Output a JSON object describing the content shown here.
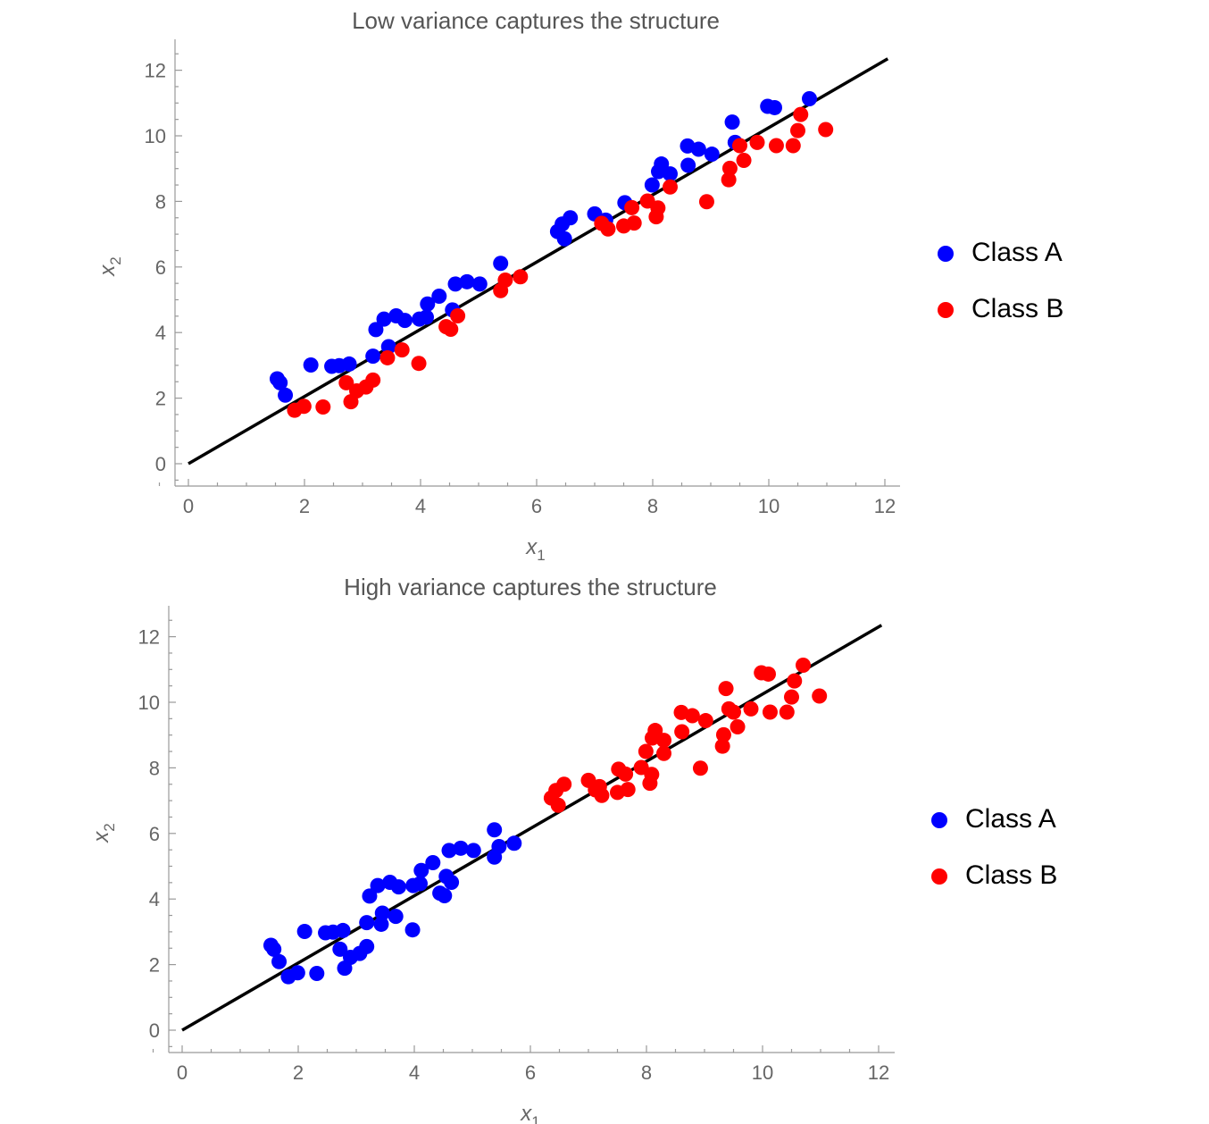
{
  "chart_data": [
    {
      "type": "scatter",
      "title": "Low variance captures the structure",
      "xlabel": "x1",
      "ylabel": "x2",
      "xlim": [
        -0.25,
        12.3
      ],
      "ylim": [
        -0.7,
        13.0
      ],
      "xticks": [
        0,
        2,
        4,
        6,
        8,
        10,
        12
      ],
      "yticks": [
        0,
        2,
        4,
        6,
        8,
        10,
        12
      ],
      "grid": false,
      "legend_position": "right",
      "line": {
        "x": [
          0,
          12.05
        ],
        "y": [
          0,
          12.35
        ],
        "color": "#000000"
      },
      "series": [
        {
          "name": "Class A",
          "color": "#0000ff",
          "points": [
            [
              1.53,
              2.59
            ],
            [
              1.58,
              2.47
            ],
            [
              1.67,
              2.09
            ],
            [
              2.11,
              3.01
            ],
            [
              2.47,
              2.97
            ],
            [
              2.6,
              2.99
            ],
            [
              2.77,
              3.04
            ],
            [
              3.18,
              3.28
            ],
            [
              3.23,
              4.09
            ],
            [
              3.37,
              4.41
            ],
            [
              3.45,
              3.57
            ],
            [
              3.58,
              4.51
            ],
            [
              3.73,
              4.37
            ],
            [
              3.98,
              4.41
            ],
            [
              4.1,
              4.47
            ],
            [
              4.12,
              4.87
            ],
            [
              4.32,
              5.11
            ],
            [
              4.55,
              4.69
            ],
            [
              4.6,
              5.48
            ],
            [
              4.8,
              5.55
            ],
            [
              5.02,
              5.48
            ],
            [
              5.38,
              6.11
            ],
            [
              6.36,
              7.08
            ],
            [
              6.44,
              7.31
            ],
            [
              6.48,
              6.86
            ],
            [
              6.58,
              7.5
            ],
            [
              7.0,
              7.62
            ],
            [
              7.19,
              7.43
            ],
            [
              7.52,
              7.96
            ],
            [
              7.99,
              8.5
            ],
            [
              8.1,
              8.91
            ],
            [
              8.15,
              9.14
            ],
            [
              8.3,
              8.84
            ],
            [
              8.6,
              9.69
            ],
            [
              8.61,
              9.1
            ],
            [
              8.79,
              9.59
            ],
            [
              9.02,
              9.44
            ],
            [
              9.37,
              10.42
            ],
            [
              9.42,
              9.8
            ],
            [
              9.98,
              10.9
            ],
            [
              10.1,
              10.86
            ],
            [
              10.7,
              11.13
            ]
          ]
        },
        {
          "name": "Class B",
          "color": "#ff0000",
          "points": [
            [
              1.83,
              1.63
            ],
            [
              1.99,
              1.75
            ],
            [
              2.32,
              1.73
            ],
            [
              2.72,
              2.47
            ],
            [
              2.8,
              1.89
            ],
            [
              2.9,
              2.22
            ],
            [
              3.06,
              2.34
            ],
            [
              3.18,
              2.55
            ],
            [
              3.43,
              3.23
            ],
            [
              3.68,
              3.47
            ],
            [
              3.97,
              3.06
            ],
            [
              4.44,
              4.18
            ],
            [
              4.52,
              4.1
            ],
            [
              4.64,
              4.51
            ],
            [
              5.38,
              5.28
            ],
            [
              5.46,
              5.6
            ],
            [
              5.72,
              5.7
            ],
            [
              7.12,
              7.33
            ],
            [
              7.23,
              7.16
            ],
            [
              7.5,
              7.25
            ],
            [
              7.64,
              7.81
            ],
            [
              7.68,
              7.34
            ],
            [
              7.91,
              8.01
            ],
            [
              8.06,
              7.53
            ],
            [
              8.09,
              7.8
            ],
            [
              8.3,
              8.44
            ],
            [
              8.93,
              7.99
            ],
            [
              9.31,
              8.66
            ],
            [
              9.33,
              9.01
            ],
            [
              9.5,
              9.7
            ],
            [
              9.57,
              9.25
            ],
            [
              9.8,
              9.8
            ],
            [
              10.13,
              9.7
            ],
            [
              10.42,
              9.7
            ],
            [
              10.5,
              10.16
            ],
            [
              10.55,
              10.65
            ],
            [
              10.98,
              10.19
            ]
          ]
        }
      ]
    },
    {
      "type": "scatter",
      "title": "High variance captures the structure",
      "xlabel": "x1",
      "ylabel": "x2",
      "xlim": [
        -0.25,
        12.3
      ],
      "ylim": [
        -0.7,
        13.0
      ],
      "xticks": [
        0,
        2,
        4,
        6,
        8,
        10,
        12
      ],
      "yticks": [
        0,
        2,
        4,
        6,
        8,
        10,
        12
      ],
      "grid": false,
      "legend_position": "right",
      "line": {
        "x": [
          0,
          12.05
        ],
        "y": [
          0,
          12.35
        ],
        "color": "#000000"
      },
      "series": [
        {
          "name": "Class A",
          "color": "#0000ff",
          "points": [
            [
              1.53,
              2.59
            ],
            [
              1.58,
              2.47
            ],
            [
              1.67,
              2.09
            ],
            [
              2.11,
              3.01
            ],
            [
              2.47,
              2.97
            ],
            [
              2.6,
              2.99
            ],
            [
              2.77,
              3.04
            ],
            [
              3.18,
              3.28
            ],
            [
              3.23,
              4.09
            ],
            [
              3.37,
              4.41
            ],
            [
              3.45,
              3.57
            ],
            [
              3.58,
              4.51
            ],
            [
              3.73,
              4.37
            ],
            [
              3.98,
              4.41
            ],
            [
              4.1,
              4.47
            ],
            [
              4.12,
              4.87
            ],
            [
              4.32,
              5.11
            ],
            [
              4.55,
              4.69
            ],
            [
              4.6,
              5.48
            ],
            [
              4.8,
              5.55
            ],
            [
              5.02,
              5.48
            ],
            [
              5.38,
              6.11
            ],
            [
              1.83,
              1.63
            ],
            [
              1.99,
              1.75
            ],
            [
              2.32,
              1.73
            ],
            [
              2.72,
              2.47
            ],
            [
              2.8,
              1.89
            ],
            [
              2.9,
              2.22
            ],
            [
              3.06,
              2.34
            ],
            [
              3.18,
              2.55
            ],
            [
              3.43,
              3.23
            ],
            [
              3.68,
              3.47
            ],
            [
              3.97,
              3.06
            ],
            [
              4.44,
              4.18
            ],
            [
              4.52,
              4.1
            ],
            [
              4.64,
              4.51
            ],
            [
              5.38,
              5.28
            ],
            [
              5.46,
              5.6
            ],
            [
              5.72,
              5.7
            ]
          ]
        },
        {
          "name": "Class B",
          "color": "#ff0000",
          "points": [
            [
              6.36,
              7.08
            ],
            [
              6.44,
              7.31
            ],
            [
              6.48,
              6.86
            ],
            [
              6.58,
              7.5
            ],
            [
              7.0,
              7.62
            ],
            [
              7.19,
              7.43
            ],
            [
              7.52,
              7.96
            ],
            [
              7.99,
              8.5
            ],
            [
              8.1,
              8.91
            ],
            [
              8.15,
              9.14
            ],
            [
              8.3,
              8.84
            ],
            [
              8.6,
              9.69
            ],
            [
              8.61,
              9.1
            ],
            [
              8.79,
              9.59
            ],
            [
              9.02,
              9.44
            ],
            [
              9.37,
              10.42
            ],
            [
              9.42,
              9.8
            ],
            [
              9.98,
              10.9
            ],
            [
              10.1,
              10.86
            ],
            [
              10.7,
              11.13
            ],
            [
              7.12,
              7.33
            ],
            [
              7.23,
              7.16
            ],
            [
              7.5,
              7.25
            ],
            [
              7.64,
              7.81
            ],
            [
              7.68,
              7.34
            ],
            [
              7.91,
              8.01
            ],
            [
              8.06,
              7.53
            ],
            [
              8.09,
              7.8
            ],
            [
              8.3,
              8.44
            ],
            [
              8.93,
              7.99
            ],
            [
              9.31,
              8.66
            ],
            [
              9.33,
              9.01
            ],
            [
              9.5,
              9.7
            ],
            [
              9.57,
              9.25
            ],
            [
              9.8,
              9.8
            ],
            [
              10.13,
              9.7
            ],
            [
              10.42,
              9.7
            ],
            [
              10.5,
              10.16
            ],
            [
              10.55,
              10.65
            ],
            [
              10.98,
              10.19
            ]
          ]
        }
      ]
    }
  ]
}
